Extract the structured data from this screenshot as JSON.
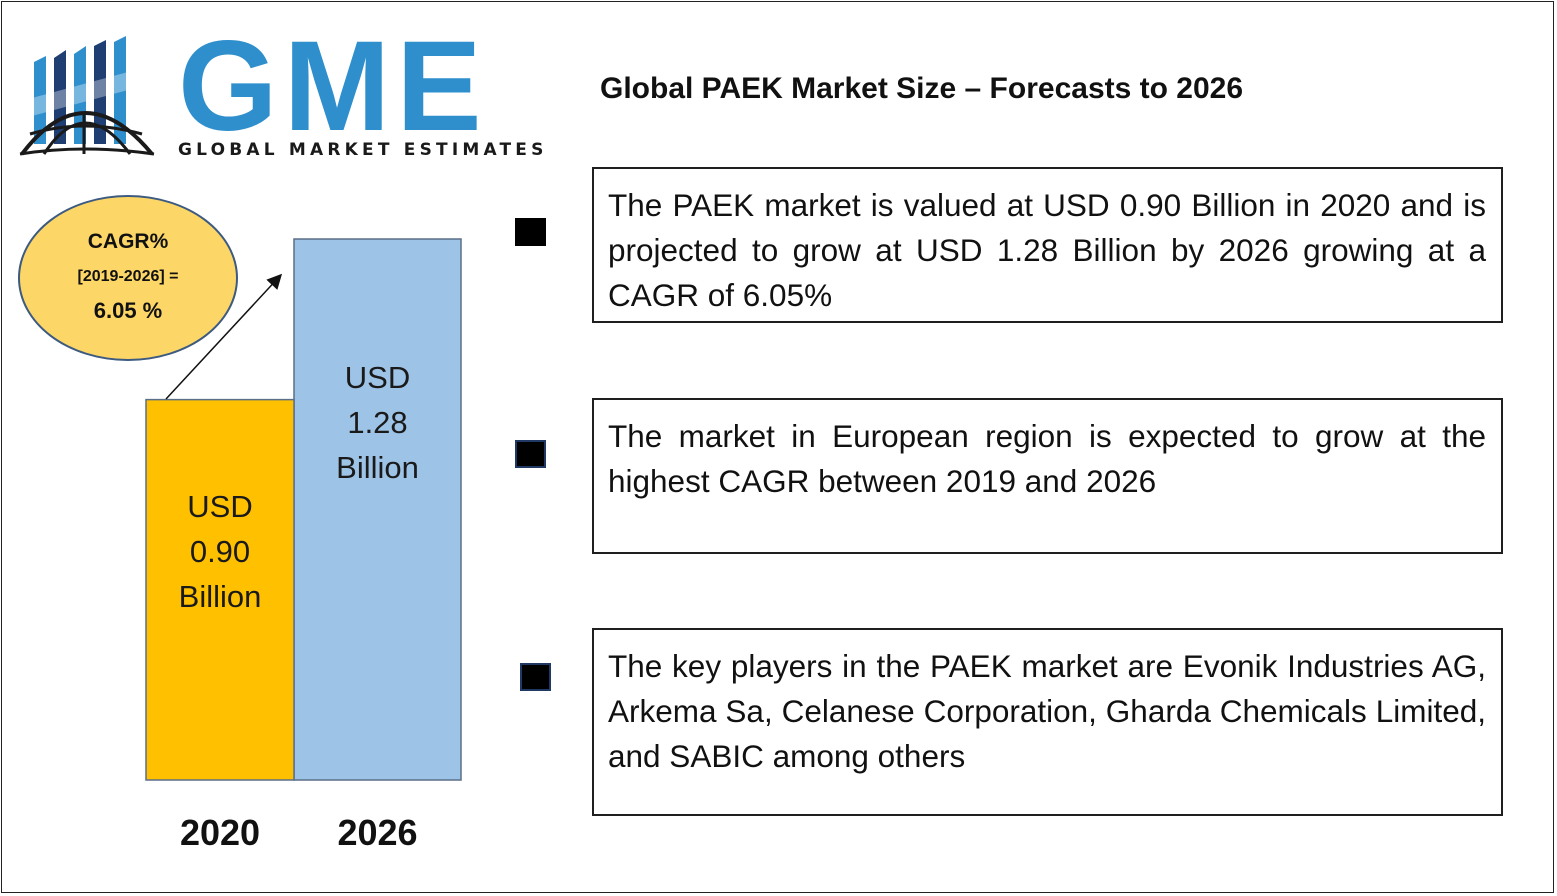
{
  "brand": {
    "name": "GME",
    "tagline": "GLOBAL MARKET ESTIMATES",
    "colors": {
      "blue": "#2f8fcd",
      "navy": "#1f3f73",
      "dark": "#1a1a1a"
    }
  },
  "title": "Global PAEK Market Size – Forecasts to 2026",
  "cagr": {
    "line1": "CAGR%",
    "line2": "[2019-2026] =",
    "line3": "6.05 %",
    "color": "#fcd666"
  },
  "chart_data": {
    "type": "bar",
    "categories": [
      "2020",
      "2026"
    ],
    "values": [
      0.9,
      1.28
    ],
    "unit": "USD Billion",
    "data_labels": [
      [
        "USD",
        "0.90",
        "Billion"
      ],
      [
        "USD",
        "1.28",
        "Billion"
      ]
    ],
    "colors": [
      "#ffc000",
      "#9dc3e6"
    ],
    "title": "",
    "xlabel": "",
    "ylabel": "",
    "ylim": [
      0,
      1.28
    ],
    "grid": false,
    "legend": "none"
  },
  "highlights": [
    {
      "text": "The PAEK market is valued at USD 0.90 Billion in 2020 and is projected to grow at USD 1.28 Billion by 2026 growing at a CAGR of 6.05%"
    },
    {
      "text": "The market in European region is expected to grow at the highest CAGR between 2019 and 2026"
    },
    {
      "text": "The key players in the PAEK market are Evonik Industries AG, Arkema Sa, Celanese Corporation, Gharda Chemicals Limited, and SABIC among others"
    }
  ]
}
